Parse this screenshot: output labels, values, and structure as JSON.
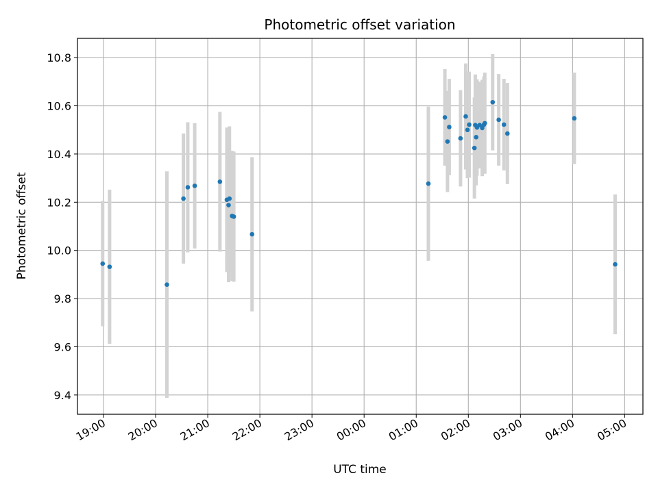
{
  "chart_data": {
    "type": "scatter",
    "title": "Photometric offset variation",
    "xlabel": "UTC time",
    "ylabel": "Photometric offset",
    "x_unit": "UTC hours (times after midnight shown as 24+h)",
    "x_ticks": [
      "19:00",
      "20:00",
      "21:00",
      "22:00",
      "23:00",
      "00:00",
      "01:00",
      "02:00",
      "03:00",
      "04:00",
      "05:00"
    ],
    "y_ticks": [
      "9.4",
      "9.6",
      "9.8",
      "10.0",
      "10.2",
      "10.4",
      "10.6",
      "10.8"
    ],
    "xlim": [
      18.5,
      29.35
    ],
    "ylim": [
      9.32,
      10.88
    ],
    "grid": true,
    "marker_color": "#1f77b4",
    "errorbar_color": "#d3d3d3",
    "points": [
      {
        "time": "18:59",
        "y": 9.945,
        "err": 0.26
      },
      {
        "time": "19:07",
        "y": 9.932,
        "err": 0.32
      },
      {
        "time": "20:13",
        "y": 9.858,
        "err": 0.47
      },
      {
        "time": "20:32",
        "y": 10.215,
        "err": 0.27
      },
      {
        "time": "20:37",
        "y": 10.262,
        "err": 0.27
      },
      {
        "time": "20:45",
        "y": 10.268,
        "err": 0.26
      },
      {
        "time": "21:14",
        "y": 10.285,
        "err": 0.29
      },
      {
        "time": "21:22",
        "y": 10.21,
        "err": 0.3
      },
      {
        "time": "21:24",
        "y": 10.188,
        "err": 0.32
      },
      {
        "time": "21:25",
        "y": 10.215,
        "err": 0.3
      },
      {
        "time": "21:28",
        "y": 10.143,
        "err": 0.27
      },
      {
        "time": "21:30",
        "y": 10.14,
        "err": 0.27
      },
      {
        "time": "21:51",
        "y": 10.067,
        "err": 0.32
      },
      {
        "time": "01:14",
        "y": 10.277,
        "err": 0.32
      },
      {
        "time": "01:33",
        "y": 10.552,
        "err": 0.2
      },
      {
        "time": "01:36",
        "y": 10.452,
        "err": 0.21
      },
      {
        "time": "01:38",
        "y": 10.512,
        "err": 0.2
      },
      {
        "time": "01:51",
        "y": 10.465,
        "err": 0.2
      },
      {
        "time": "01:57",
        "y": 10.556,
        "err": 0.22
      },
      {
        "time": "01:59",
        "y": 10.5,
        "err": 0.2
      },
      {
        "time": "02:01",
        "y": 10.522,
        "err": 0.22
      },
      {
        "time": "02:07",
        "y": 10.425,
        "err": 0.21
      },
      {
        "time": "02:08",
        "y": 10.52,
        "err": 0.21
      },
      {
        "time": "02:09",
        "y": 10.47,
        "err": 0.2
      },
      {
        "time": "02:10",
        "y": 10.51,
        "err": 0.2
      },
      {
        "time": "02:13",
        "y": 10.52,
        "err": 0.18
      },
      {
        "time": "02:16",
        "y": 10.508,
        "err": 0.2
      },
      {
        "time": "02:18",
        "y": 10.522,
        "err": 0.2
      },
      {
        "time": "02:19",
        "y": 10.528,
        "err": 0.21
      },
      {
        "time": "02:28",
        "y": 10.615,
        "err": 0.2
      },
      {
        "time": "02:35",
        "y": 10.542,
        "err": 0.19
      },
      {
        "time": "02:41",
        "y": 10.522,
        "err": 0.19
      },
      {
        "time": "02:45",
        "y": 10.485,
        "err": 0.21
      },
      {
        "time": "04:02",
        "y": 10.548,
        "err": 0.19
      },
      {
        "time": "04:49",
        "y": 9.942,
        "err": 0.29
      }
    ]
  }
}
